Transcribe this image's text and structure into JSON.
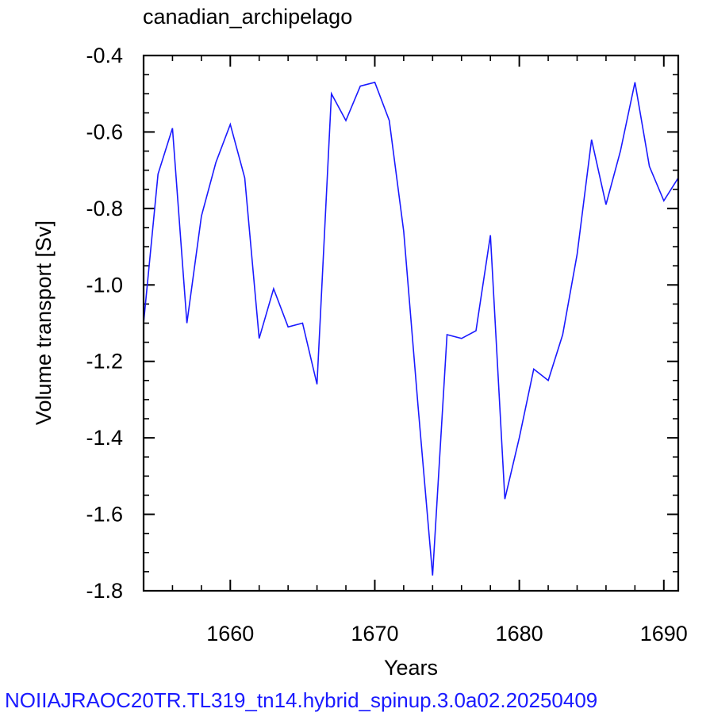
{
  "chart_data": {
    "type": "line",
    "title": "canadian_archipelago",
    "xlabel": "Years",
    "ylabel": "Volume transport [Sv]",
    "xlim": [
      1654,
      1691
    ],
    "ylim": [
      -1.8,
      -0.4
    ],
    "x_ticks": [
      1660,
      1670,
      1680,
      1690
    ],
    "x_tick_labels": [
      "1660",
      "1670",
      "1680",
      "1690"
    ],
    "y_ticks": [
      -1.8,
      -1.6,
      -1.4,
      -1.2,
      -1.0,
      -0.8,
      -0.6,
      -0.4
    ],
    "y_tick_labels": [
      "-1.8",
      "-1.6",
      "-1.4",
      "-1.2",
      "-1.0",
      "-0.8",
      "-0.6",
      "-0.4"
    ],
    "grid": false,
    "line_color": "#1a1aff",
    "series": [
      {
        "x": [
          1654,
          1655,
          1656,
          1657,
          1658,
          1659,
          1660,
          1661,
          1662,
          1663,
          1664,
          1665,
          1666,
          1667,
          1668,
          1669,
          1670,
          1671,
          1672,
          1673,
          1674,
          1675,
          1676,
          1677,
          1678,
          1679,
          1680,
          1681,
          1682,
          1683,
          1684,
          1685,
          1686,
          1687,
          1688,
          1689,
          1690,
          1691
        ],
        "values": [
          -1.1,
          -0.71,
          -0.59,
          -1.1,
          -0.82,
          -0.68,
          -0.58,
          -0.72,
          -1.14,
          -1.01,
          -1.11,
          -1.1,
          -1.26,
          -0.5,
          -0.57,
          -0.48,
          -0.47,
          -0.57,
          -0.86,
          -1.32,
          -1.76,
          -1.13,
          -1.14,
          -1.12,
          -0.87,
          -1.56,
          -1.4,
          -1.22,
          -1.25,
          -1.13,
          -0.92,
          -0.62,
          -0.79,
          -0.65,
          -0.47,
          -0.69,
          -0.78,
          -0.72
        ]
      }
    ]
  },
  "footer": "NOIIAJRAOC20TR.TL319_tn14.hybrid_spinup.3.0a02.20250409"
}
